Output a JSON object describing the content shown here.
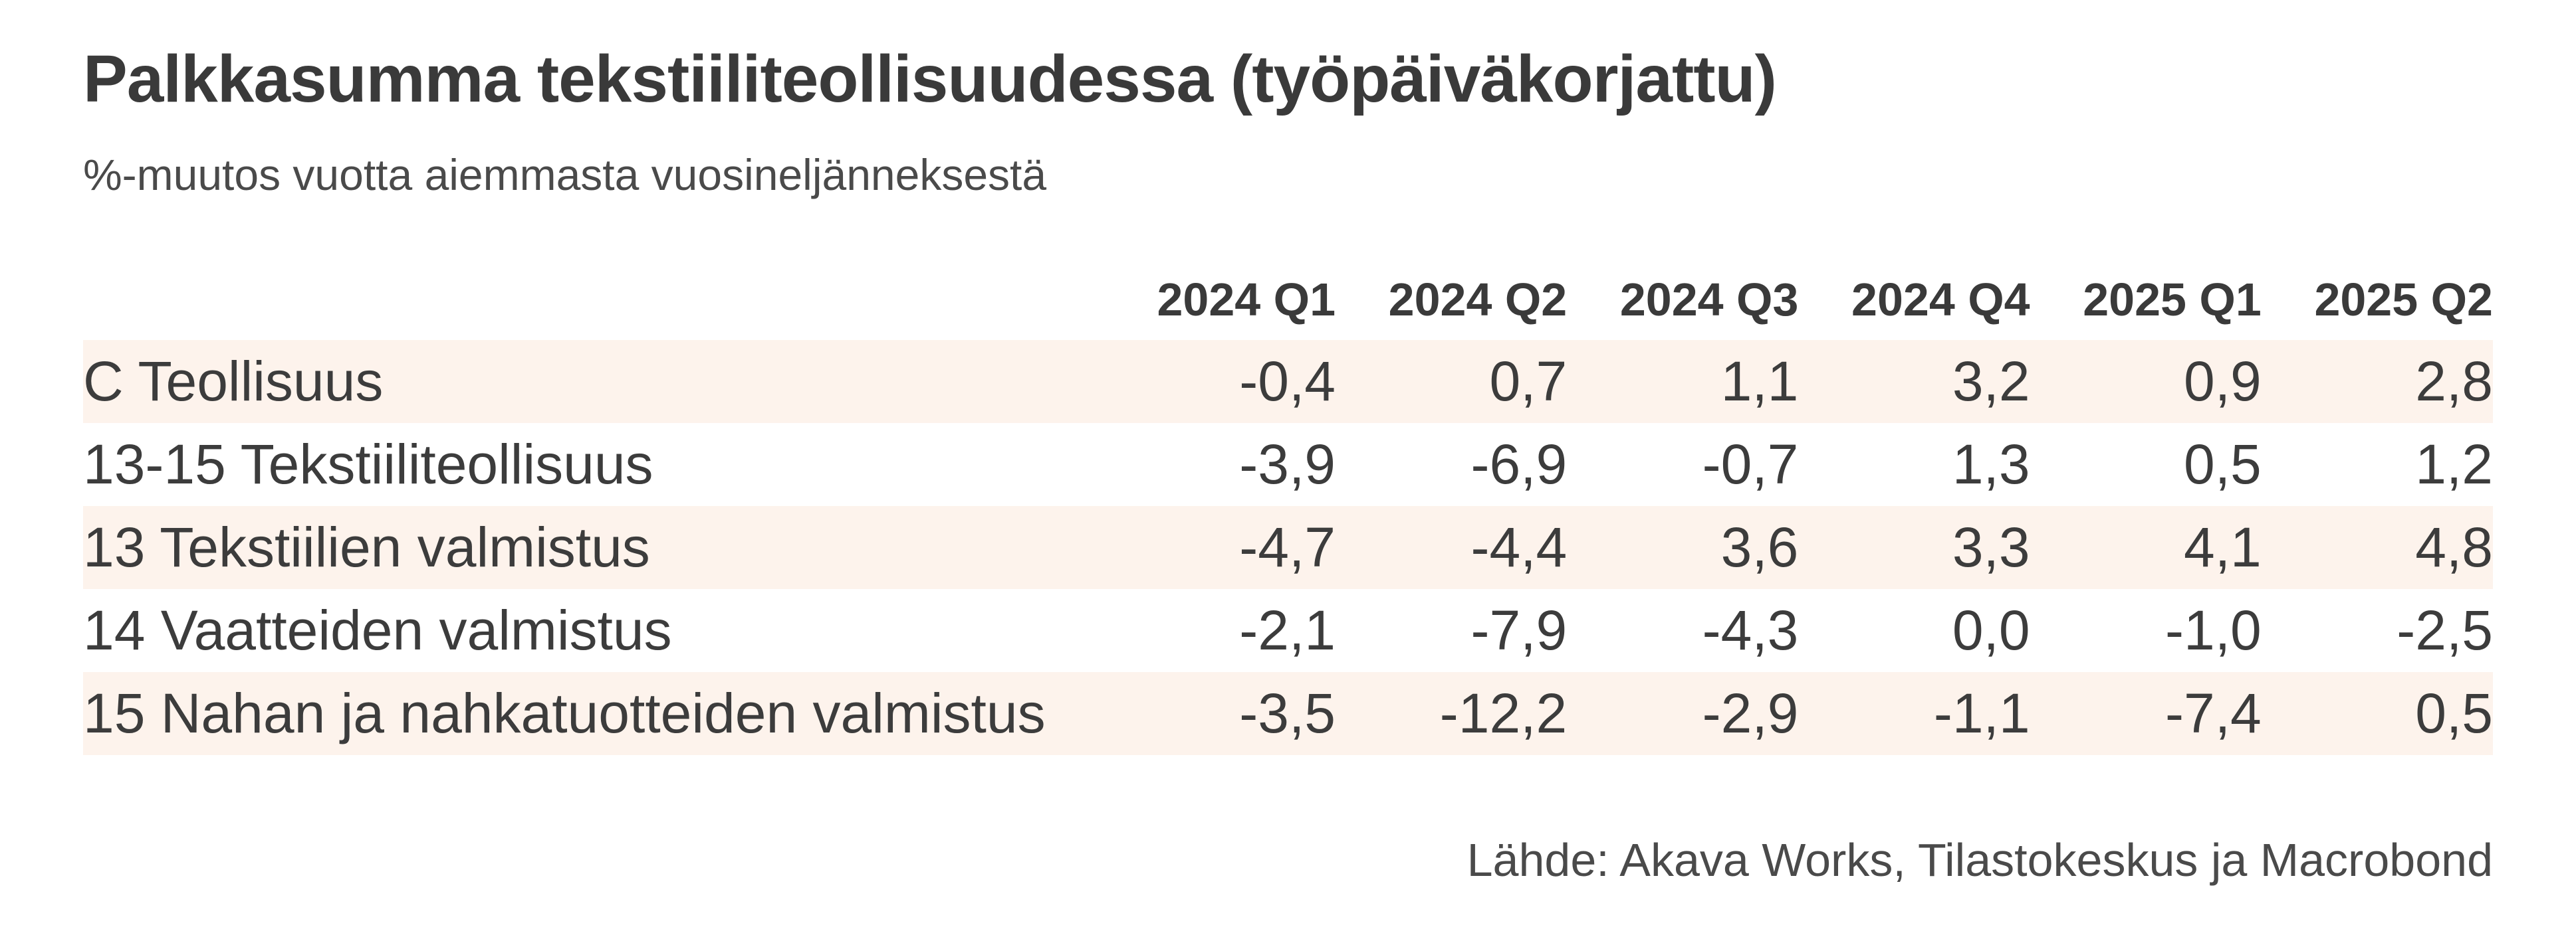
{
  "chart_data": {
    "type": "table",
    "title": "Palkkasumma tekstiiliteollisuudessa (työpäiväkorjattu)",
    "subtitle": "%-muutos vuotta aiemmasta vuosineljänneksestä",
    "columns": [
      "2024 Q1",
      "2024 Q2",
      "2024 Q3",
      "2024 Q4",
      "2025 Q1",
      "2025 Q2"
    ],
    "rows": [
      {
        "label": "C Teollisuus",
        "values": [
          "-0,4",
          "0,7",
          "1,1",
          "3,2",
          "0,9",
          "2,8"
        ]
      },
      {
        "label": "13-15 Tekstiiliteollisuus",
        "values": [
          "-3,9",
          "-6,9",
          "-0,7",
          "1,3",
          "0,5",
          "1,2"
        ]
      },
      {
        "label": "13 Tekstiilien valmistus",
        "values": [
          "-4,7",
          "-4,4",
          "3,6",
          "3,3",
          "4,1",
          "4,8"
        ]
      },
      {
        "label": "14 Vaatteiden valmistus",
        "values": [
          "-2,1",
          "-7,9",
          "-4,3",
          "0,0",
          "-1,0",
          "-2,5"
        ]
      },
      {
        "label": "15 Nahan ja nahkatuotteiden valmistus",
        "values": [
          "-3,5",
          "-12,2",
          "-2,9",
          "-1,1",
          "-7,4",
          "0,5"
        ]
      }
    ],
    "source": "Lähde: Akava Works, Tilastokeskus ja Macrobond",
    "row_shading_color": "#fdf3ec"
  }
}
